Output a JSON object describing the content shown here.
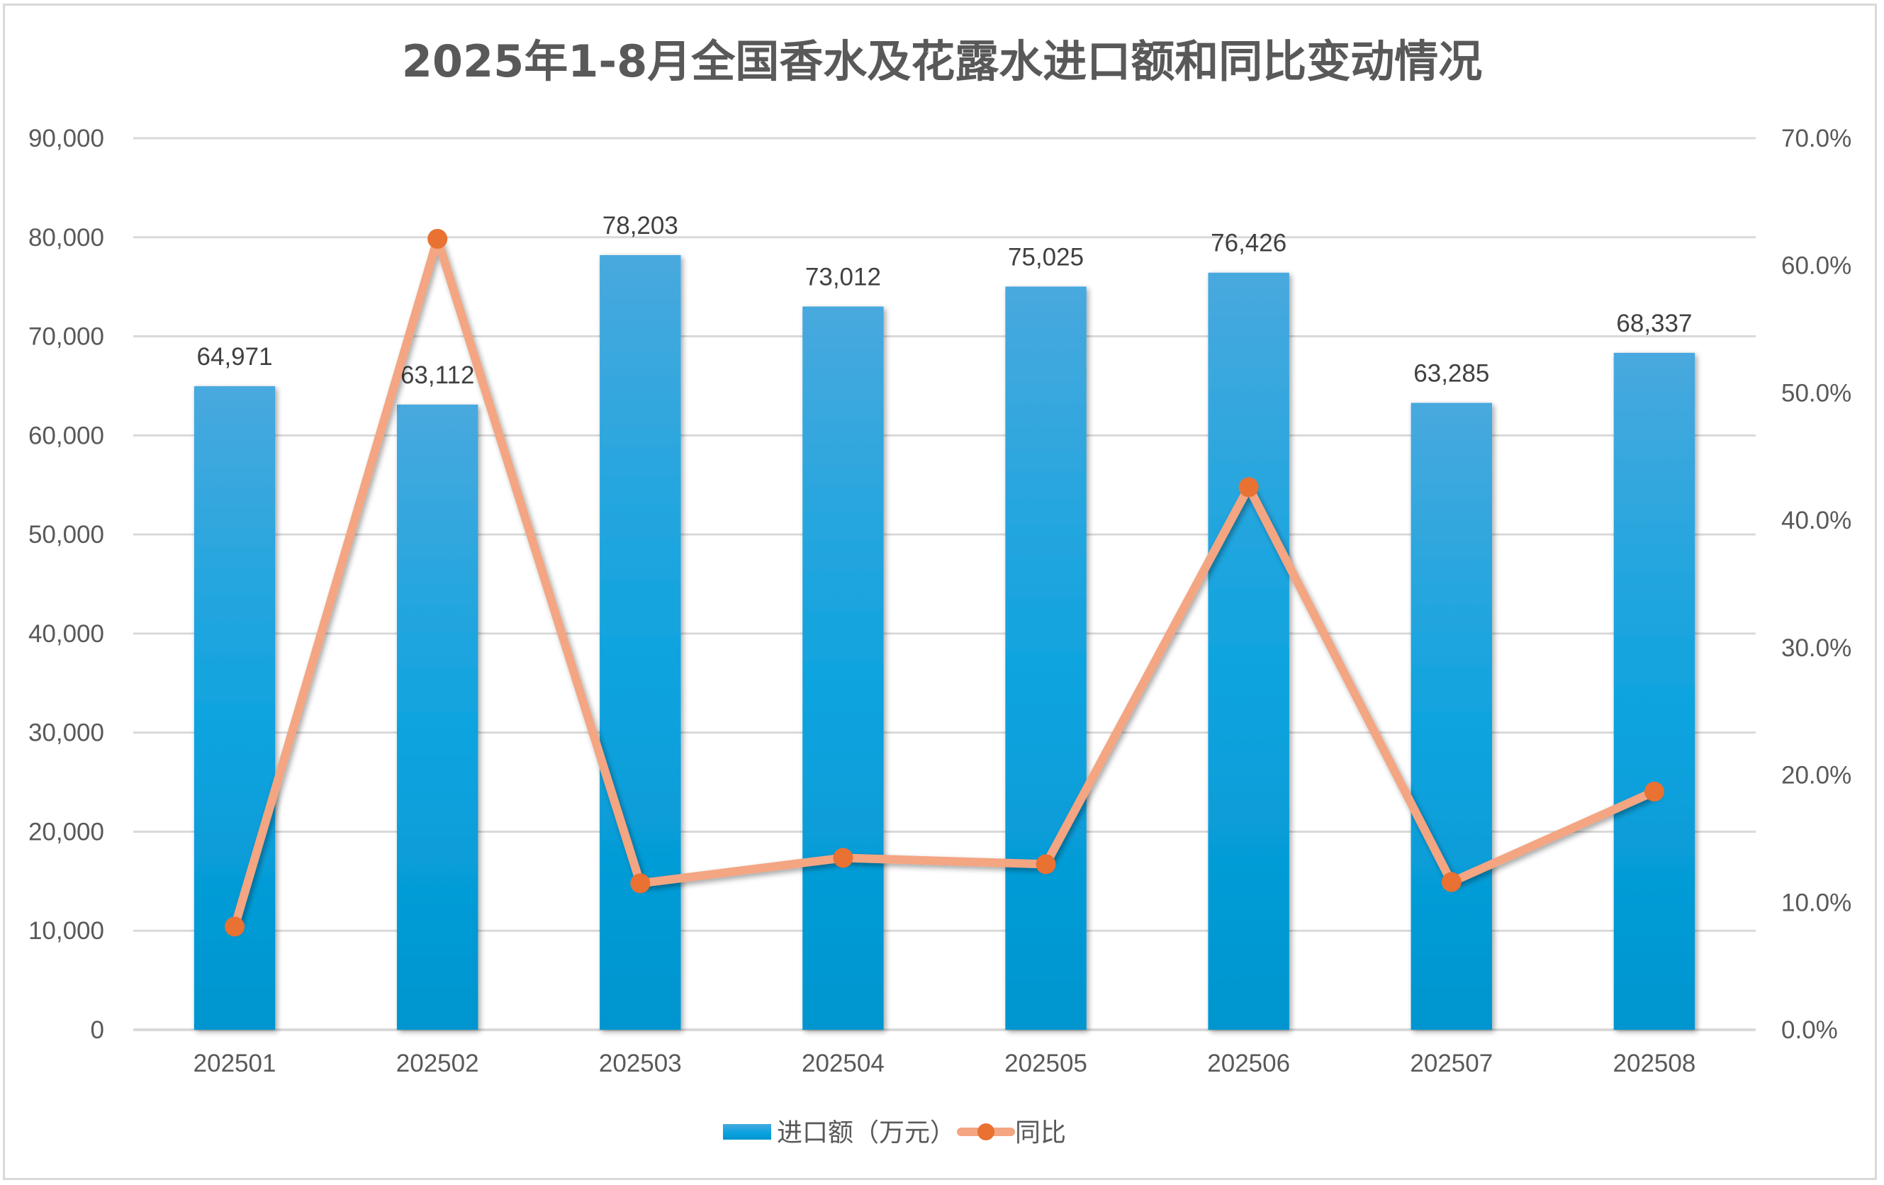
{
  "chart_data": {
    "type": "bar+line",
    "title": "2025年1-8月全国香水及花露水进口额和同比变动情况",
    "categories": [
      "202501",
      "202502",
      "202503",
      "202504",
      "202505",
      "202506",
      "202507",
      "202508"
    ],
    "series": [
      {
        "name": "进口额（万元）",
        "type": "bar",
        "axis": "left",
        "values": [
          64971,
          63112,
          78203,
          73012,
          75025,
          76426,
          63285,
          68337
        ],
        "labels": [
          "64,971",
          "63,112",
          "78,203",
          "73,012",
          "75,025",
          "76,426",
          "63,285",
          "68,337"
        ],
        "color": "#0BA3DF"
      },
      {
        "name": "同比",
        "type": "line",
        "axis": "right",
        "values": [
          8.1,
          62.1,
          11.5,
          13.5,
          13.0,
          42.6,
          11.6,
          18.7
        ],
        "unit": "%",
        "line_color": "#F4A582",
        "marker_color": "#E97132"
      }
    ],
    "y_left": {
      "min": 0,
      "max": 90000,
      "step": 10000,
      "tick_labels": [
        "0",
        "10,000",
        "20,000",
        "30,000",
        "40,000",
        "50,000",
        "60,000",
        "70,000",
        "80,000",
        "90,000"
      ]
    },
    "y_right": {
      "min": 0,
      "max": 70,
      "step": 10,
      "tick_labels": [
        "0.0%",
        "10.0%",
        "20.0%",
        "30.0%",
        "40.0%",
        "50.0%",
        "60.0%",
        "70.0%"
      ]
    },
    "xlabel": "",
    "ylabel": "",
    "grid": true,
    "legend_position": "bottom"
  },
  "colors": {
    "title": "#595959",
    "tick_text": "#595959",
    "data_label": "#404040",
    "gridline": "#D9D9D9",
    "bar_top": "#48A9DE",
    "bar_mid": "#0BA3DF",
    "bar_bottom": "#0195CF",
    "line": "#F4A582",
    "marker": "#E97132"
  }
}
